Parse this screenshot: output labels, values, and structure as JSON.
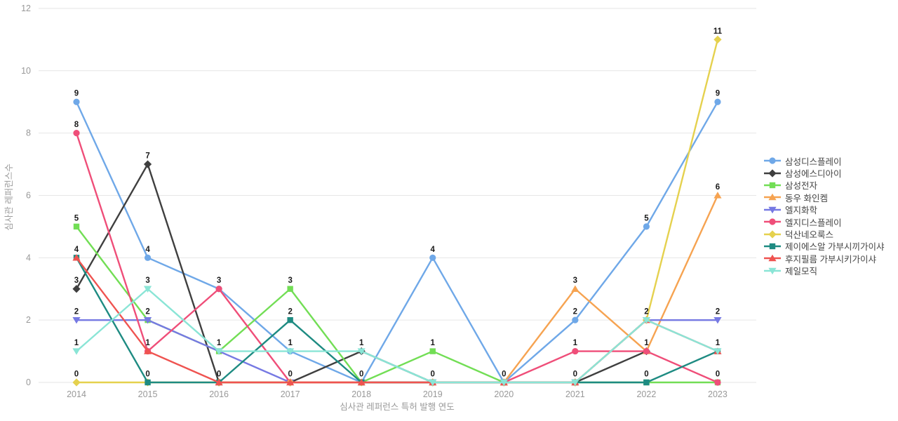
{
  "chart_data": {
    "type": "line",
    "title": "",
    "xlabel": "심사관 레퍼런스 특허 발행 연도",
    "ylabel": "심사관 레퍼런스수",
    "categories": [
      "2014",
      "2015",
      "2016",
      "2017",
      "2018",
      "2019",
      "2020",
      "2021",
      "2022",
      "2023"
    ],
    "ylim": [
      0,
      12
    ],
    "yticks": [
      0,
      2,
      4,
      6,
      8,
      10,
      12
    ],
    "grid": true,
    "legend_position": "right",
    "point_labels_shown": true,
    "colors": {
      "grid": "#e6e6e6",
      "tick_text": "#999999",
      "point_label_text": "#1a1a1a",
      "legend_text": "#444444"
    },
    "series": [
      {
        "name": "삼성디스플레이",
        "color": "#6FA8E8",
        "marker": "circle",
        "values": [
          9,
          4,
          3,
          1,
          0,
          4,
          0,
          2,
          5,
          9
        ]
      },
      {
        "name": "삼성에스디아이",
        "color": "#3F3F3F",
        "marker": "diamond",
        "values": [
          3,
          7,
          0,
          0,
          1,
          0,
          0,
          0,
          1,
          null
        ]
      },
      {
        "name": "삼성전자",
        "color": "#72DE55",
        "marker": "square",
        "values": [
          5,
          2,
          1,
          3,
          0,
          1,
          0,
          0,
          0,
          0
        ]
      },
      {
        "name": "동우 화인켐",
        "color": "#F6A351",
        "marker": "triangle-up",
        "values": [
          null,
          null,
          null,
          null,
          null,
          null,
          0,
          3,
          1,
          6
        ]
      },
      {
        "name": "엘지화학",
        "color": "#7679E3",
        "marker": "triangle-down",
        "values": [
          2,
          2,
          1,
          0,
          0,
          0,
          0,
          0,
          2,
          2
        ]
      },
      {
        "name": "엘지디스플레이",
        "color": "#EF4E79",
        "marker": "circle",
        "values": [
          8,
          1,
          3,
          0,
          0,
          0,
          0,
          1,
          1,
          0
        ]
      },
      {
        "name": "덕산네오룩스",
        "color": "#E5D14E",
        "marker": "diamond",
        "values": [
          0,
          0,
          0,
          0,
          0,
          0,
          0,
          0,
          2,
          11
        ]
      },
      {
        "name": "제이에스알 가부시끼가이샤",
        "color": "#1E8B82",
        "marker": "square",
        "values": [
          4,
          0,
          0,
          2,
          0,
          0,
          0,
          0,
          0,
          1
        ]
      },
      {
        "name": "후지필름 가부시키가이샤",
        "color": "#EF5350",
        "marker": "triangle-up",
        "values": [
          4,
          1,
          0,
          0,
          0,
          0,
          0,
          0,
          2,
          1
        ]
      },
      {
        "name": "제일모직",
        "color": "#8AE5D6",
        "marker": "triangle-down",
        "values": [
          1,
          3,
          1,
          1,
          1,
          0,
          0,
          0,
          2,
          1
        ]
      }
    ]
  }
}
